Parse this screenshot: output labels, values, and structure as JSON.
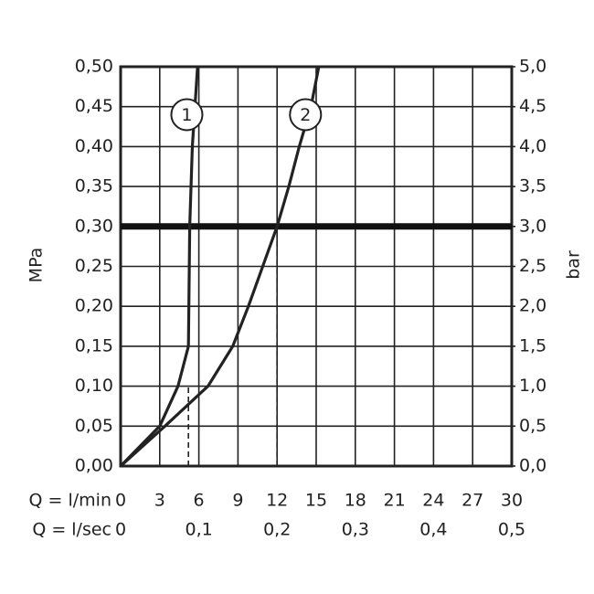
{
  "chart_data": {
    "type": "line",
    "y_label": "MPa",
    "y2_label": "bar",
    "x_label": "Q = l/min",
    "x2_label": "Q = l/sec",
    "xlim": [
      0,
      30
    ],
    "xticks": [
      0,
      3,
      6,
      9,
      12,
      15,
      18,
      21,
      24,
      27,
      30
    ],
    "x2lim": [
      0,
      0.5
    ],
    "x2ticks": [
      0,
      {
        "value": 0.1,
        "label": "0,1"
      },
      {
        "value": 0.2,
        "label": "0,2"
      },
      {
        "value": 0.3,
        "label": "0,3"
      },
      {
        "value": 0.4,
        "label": "0,4"
      },
      {
        "value": 0.5,
        "label": "0,5"
      }
    ],
    "ylim": [
      0,
      0.5
    ],
    "yticks": [
      {
        "value": 0,
        "label": "0,00"
      },
      {
        "value": 0.05,
        "label": "0,05"
      },
      {
        "value": 0.1,
        "label": "0,10"
      },
      {
        "value": 0.15,
        "label": "0,15"
      },
      {
        "value": 0.2,
        "label": "0,20"
      },
      {
        "value": 0.25,
        "label": "0,25"
      },
      {
        "value": 0.3,
        "label": "0,30"
      },
      {
        "value": 0.35,
        "label": "0,35"
      },
      {
        "value": 0.4,
        "label": "0,40"
      },
      {
        "value": 0.45,
        "label": "0,45"
      },
      {
        "value": 0.5,
        "label": "0,50"
      }
    ],
    "y2lim": [
      0,
      5
    ],
    "y2ticks": [
      {
        "value": 0,
        "label": "0,0"
      },
      {
        "value": 0.5,
        "label": "0,5"
      },
      {
        "value": 1,
        "label": "1,0"
      },
      {
        "value": 1.5,
        "label": "1,5"
      },
      {
        "value": 2,
        "label": "2,0"
      },
      {
        "value": 2.5,
        "label": "2,5"
      },
      {
        "value": 3,
        "label": "3,0"
      },
      {
        "value": 3.5,
        "label": "3,5"
      },
      {
        "value": 4,
        "label": "4,0"
      },
      {
        "value": 4.5,
        "label": "4,5"
      },
      {
        "value": 5,
        "label": "5,0"
      }
    ],
    "grid": true,
    "reference_line": 0.3,
    "drop_lines": [
      {
        "x": 5.2,
        "y": 0.1
      },
      {
        "x": 12,
        "y": 0.3
      }
    ],
    "series": [
      {
        "name": "1",
        "color": "#222222",
        "x": [
          0,
          3.0,
          4.4,
          5.2,
          5.3,
          5.5,
          5.9
        ],
        "values": [
          0,
          0.05,
          0.1,
          0.15,
          0.3,
          0.4,
          0.5
        ]
      },
      {
        "name": "2",
        "color": "#222222",
        "x": [
          0,
          3.4,
          6.7,
          8.6,
          9.8,
          10.9,
          12.0,
          12.9,
          13.7,
          14.6,
          15.2
        ],
        "values": [
          0,
          0.05,
          0.1,
          0.15,
          0.2,
          0.25,
          0.3,
          0.35,
          0.4,
          0.45,
          0.5
        ]
      }
    ]
  }
}
